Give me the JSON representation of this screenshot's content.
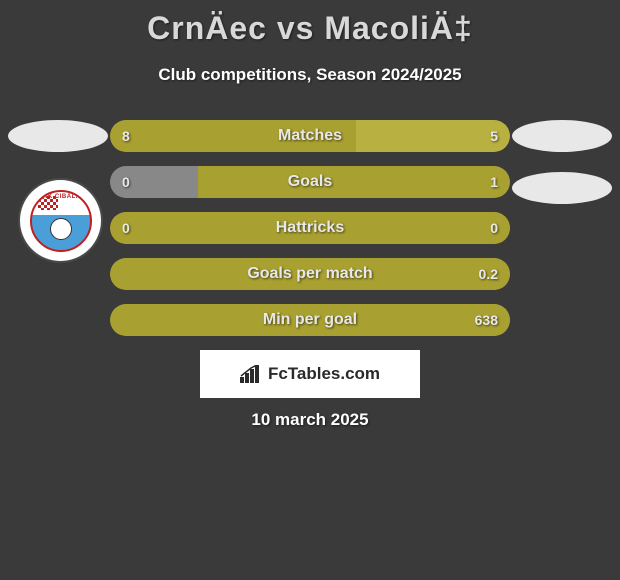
{
  "title": "CrnÄec vs MacoliÄ‡",
  "subtitle": "Club competitions, Season 2024/2025",
  "date": "10 march 2025",
  "footer_brand": "FcTables.com",
  "club_badge_text": "HNK CIBALIA",
  "colors": {
    "bar_olive": "#a8a030",
    "bar_olive_light": "#b8b040",
    "bar_gray": "#888888",
    "avatar_bg": "#e8e8e8",
    "page_bg": "#3a3a3a",
    "title_color": "#d8d8d8",
    "text_color": "#ffffff"
  },
  "bars": [
    {
      "label": "Matches",
      "left_value": "8",
      "right_value": "5",
      "left_pct": 61.5,
      "right_pct": 38.5,
      "left_color": "#a8a030",
      "right_color": "#b8b040",
      "show_left": true,
      "show_right": true
    },
    {
      "label": "Goals",
      "left_value": "0",
      "right_value": "1",
      "left_pct": 22,
      "right_pct": 78,
      "left_color": "#888888",
      "right_color": "#a8a030",
      "show_left": true,
      "show_right": true
    },
    {
      "label": "Hattricks",
      "left_value": "0",
      "right_value": "0",
      "left_pct": 100,
      "right_pct": 0,
      "left_color": "#a8a030",
      "right_color": "#a8a030",
      "show_left": true,
      "show_right": true
    },
    {
      "label": "Goals per match",
      "left_value": "",
      "right_value": "0.2",
      "left_pct": 100,
      "right_pct": 0,
      "left_color": "#a8a030",
      "right_color": "#a8a030",
      "show_left": false,
      "show_right": true
    },
    {
      "label": "Min per goal",
      "left_value": "",
      "right_value": "638",
      "left_pct": 100,
      "right_pct": 0,
      "left_color": "#a8a030",
      "right_color": "#a8a030",
      "show_left": false,
      "show_right": true
    }
  ]
}
